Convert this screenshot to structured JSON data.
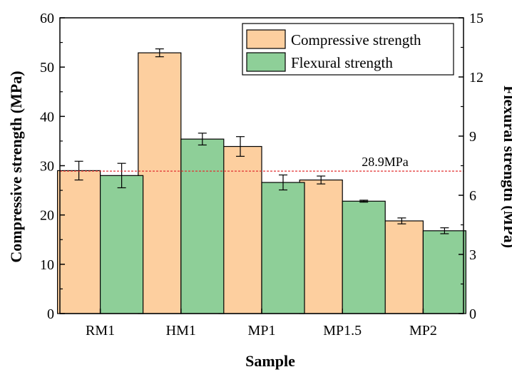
{
  "colors": {
    "compressive": "#FDCF9F",
    "flexural": "#8ECF98",
    "reference_line": "#E03030",
    "axis": "#000000"
  },
  "chart_data": {
    "type": "bar",
    "categories": [
      "RM1",
      "HM1",
      "MP1",
      "MP1.5",
      "MP2"
    ],
    "xlabel": "Sample",
    "ylabel": "Compressive strength (MPa)",
    "y2label": "Flexural strength (MPa)",
    "ylim": [
      0,
      60
    ],
    "y2lim": [
      0,
      15
    ],
    "yticks": [
      "0",
      "10",
      "20",
      "30",
      "40",
      "50",
      "60"
    ],
    "y2ticks": [
      "0",
      "3",
      "6",
      "9",
      "12",
      "15"
    ],
    "grid": false,
    "legend_position": "top-right",
    "series": [
      {
        "name": "Compressive strength",
        "axis": "left",
        "values": [
          29.0,
          52.9,
          33.9,
          27.1,
          18.8
        ],
        "errors": [
          1.9,
          0.8,
          2.0,
          0.8,
          0.6
        ]
      },
      {
        "name": "Flexural strength",
        "axis": "right",
        "values": [
          7.0,
          8.85,
          6.65,
          5.7,
          4.2
        ],
        "errors": [
          0.62,
          0.3,
          0.38,
          0.05,
          0.15
        ]
      }
    ],
    "reference_line": {
      "value": 28.9,
      "label": "28.9MPa"
    }
  }
}
